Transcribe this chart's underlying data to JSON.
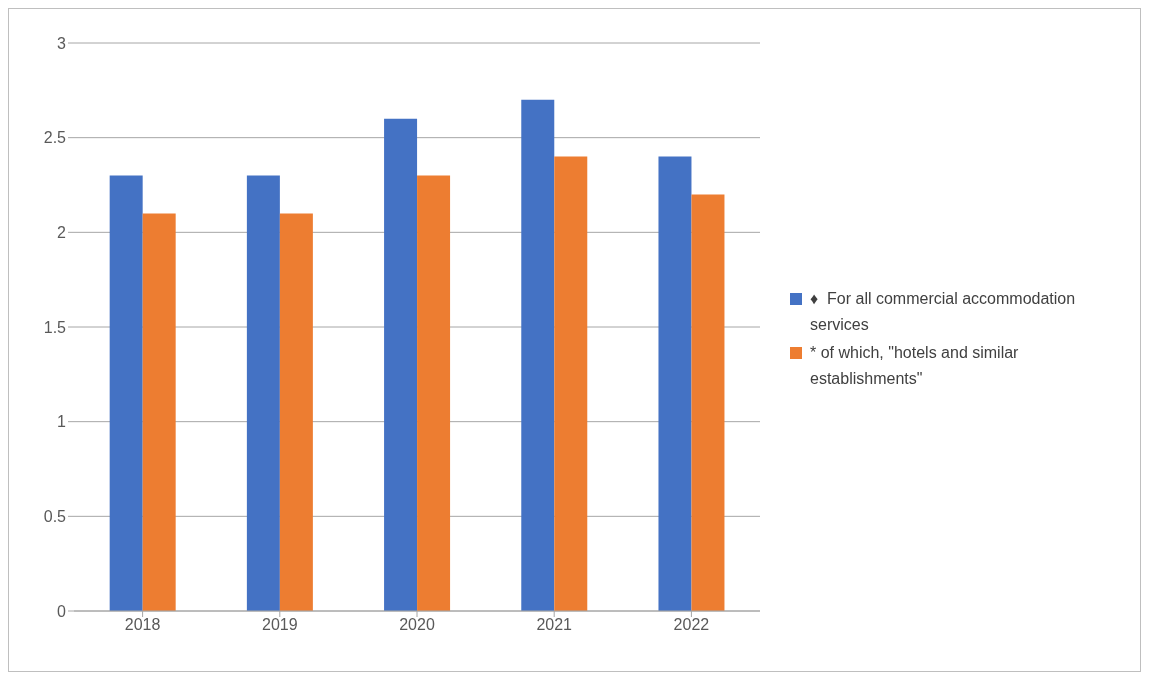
{
  "chart_data": {
    "type": "bar",
    "categories": [
      "2018",
      "2019",
      "2020",
      "2021",
      "2022"
    ],
    "series": [
      {
        "name": "♦  For all commercial accommodation services",
        "color": "#4472c4",
        "values": [
          2.3,
          2.3,
          2.6,
          2.7,
          2.4
        ]
      },
      {
        "name": "* of which, \"hotels and similar establishments\"",
        "color": "#ed7d31",
        "values": [
          2.1,
          2.1,
          2.3,
          2.4,
          2.2
        ]
      }
    ],
    "ylim": [
      0,
      3
    ],
    "yticks": [
      0,
      0.5,
      1,
      1.5,
      2,
      2.5,
      3
    ],
    "grid": "y",
    "legend": "right"
  }
}
